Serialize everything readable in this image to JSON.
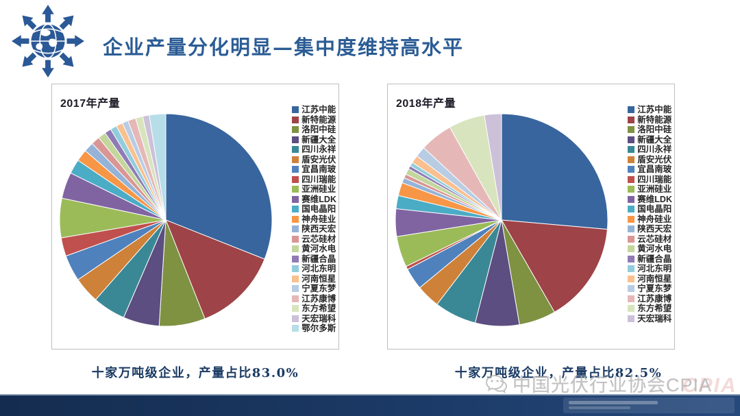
{
  "header": {
    "title": "企业产量分化明显—集中度维持高水平"
  },
  "colors": {
    "title_text": "#2B5C95",
    "caption_text": "#1A3A63",
    "logo_blue": "#2B5896",
    "footer_bar": "#1C3B68",
    "panel_border": "#BDBDBD",
    "watermark_grey": "#B3B3B3"
  },
  "palette": [
    "#38659E",
    "#9E4347",
    "#7E9242",
    "#5C4E80",
    "#3A8895",
    "#CE8139",
    "#4F81BD",
    "#C0504D",
    "#9BBB59",
    "#8064A2",
    "#4BACC6",
    "#F79646",
    "#95B3D7",
    "#D99694",
    "#C3D69B",
    "#8F7BB5",
    "#92CDDC",
    "#FAC08F",
    "#B8CCE4",
    "#E5B8B7",
    "#D7E4BD",
    "#CCC1D9",
    "#B7DEE8"
  ],
  "chart_data": [
    {
      "type": "pie",
      "title": "2017年产量",
      "legend_position": "right",
      "start_angle_deg": -90,
      "unit": "% share (estimated from slice angles)",
      "categories": [
        "江苏中能",
        "新特能源",
        "洛阳中硅",
        "新疆大全",
        "四川永祥",
        "盾安光伏",
        "宜昌南玻",
        "四川瑞能",
        "亚洲硅业",
        "赛维LDK",
        "国电晶阳",
        "神舟硅业",
        "陕西天宏",
        "云芯硅材",
        "黄河水电",
        "新疆合晶",
        "河北东明",
        "河南恒星",
        "宁夏东梦",
        "江苏康博",
        "东方希望",
        "天宏瑞科",
        "鄂尔多斯"
      ],
      "values": [
        31.0,
        13.0,
        7.0,
        5.5,
        5.0,
        4.0,
        4.0,
        2.8,
        6.0,
        4.0,
        2.2,
        1.8,
        1.5,
        1.3,
        1.2,
        1.0,
        1.0,
        1.0,
        0.9,
        1.2,
        1.1,
        1.0,
        2.5
      ],
      "caption": "十家万吨级企业，产量占比83.0%"
    },
    {
      "type": "pie",
      "title": "2018年产量",
      "legend_position": "right",
      "start_angle_deg": -90,
      "unit": "% share (estimated from slice angles)",
      "categories": [
        "江苏中能",
        "新特能源",
        "洛阳中硅",
        "新疆大全",
        "四川永祥",
        "盾安光伏",
        "宜昌南玻",
        "四川瑞能",
        "亚洲硅业",
        "赛维LDK",
        "国电晶阳",
        "神舟硅业",
        "陕西天宏",
        "云芯硅材",
        "黄河水电",
        "新疆合晶",
        "河北东明",
        "河南恒星",
        "宁夏东梦",
        "江苏康博",
        "东方希望",
        "天宏瑞科"
      ],
      "values": [
        26.4,
        15.3,
        5.6,
        6.7,
        6.4,
        3.6,
        3.3,
        0.5,
        4.7,
        4.2,
        2.0,
        2.0,
        0.8,
        0.6,
        0.9,
        0.5,
        0.6,
        1.2,
        1.6,
        5.0,
        5.5,
        2.6
      ],
      "caption": "十家万吨级企业，产量占比82.5%"
    }
  ],
  "watermark": {
    "text": "中国光伏行业协会CPIA",
    "badge": "CPIA"
  }
}
